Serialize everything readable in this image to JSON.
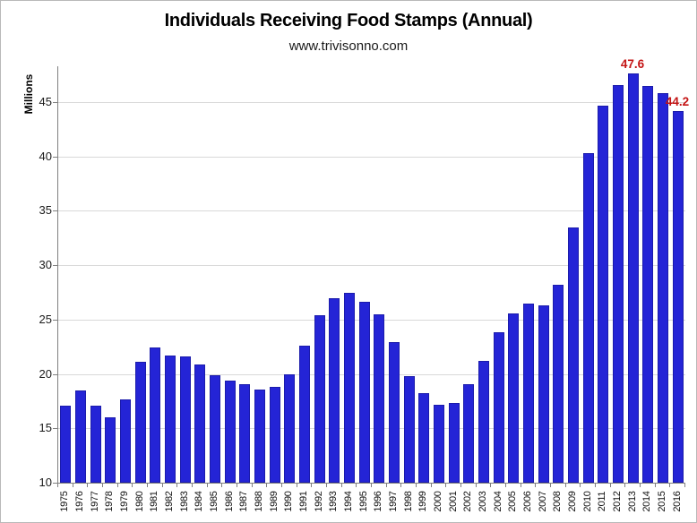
{
  "page": {
    "background": "#FFFFFF",
    "frame_border_color": "#B9B9B9"
  },
  "chart_data": {
    "type": "bar",
    "title": "Individuals Receiving Food Stamps (Annual)",
    "subtitle": "www.trivisonno.com",
    "xlabel": "",
    "ylabel": "Millions",
    "categories": [
      "1975",
      "1976",
      "1977",
      "1978",
      "1979",
      "1980",
      "1981",
      "1982",
      "1983",
      "1984",
      "1985",
      "1986",
      "1987",
      "1988",
      "1989",
      "1990",
      "1991",
      "1992",
      "1993",
      "1994",
      "1995",
      "1996",
      "1997",
      "1998",
      "1999",
      "2000",
      "2001",
      "2002",
      "2003",
      "2004",
      "2005",
      "2006",
      "2007",
      "2008",
      "2009",
      "2010",
      "2011",
      "2012",
      "2013",
      "2014",
      "2015",
      "2016"
    ],
    "values": [
      17.1,
      18.5,
      17.1,
      16.0,
      17.7,
      21.1,
      22.4,
      21.7,
      21.6,
      20.9,
      19.9,
      19.4,
      19.1,
      18.6,
      18.8,
      20.0,
      22.6,
      25.4,
      27.0,
      27.5,
      26.6,
      25.5,
      22.9,
      19.8,
      18.2,
      17.2,
      17.3,
      19.1,
      21.2,
      23.8,
      25.6,
      26.5,
      26.3,
      28.2,
      33.5,
      40.3,
      44.7,
      46.6,
      47.6,
      46.5,
      45.8,
      44.2
    ],
    "ylim": [
      10,
      48.3
    ],
    "yticks": [
      10,
      15,
      20,
      25,
      30,
      35,
      40,
      45
    ],
    "grid": true,
    "legend_position": "none",
    "bar_color": "#2424D6",
    "bar_border_color": "#1B1BAB",
    "gridline_color": "#D9D9D9",
    "axis_color": "#808080",
    "annotation_color": "#C41414",
    "annotations": [
      {
        "category": "2013",
        "label": "47.6"
      },
      {
        "category": "2016",
        "label": "44.2"
      }
    ]
  }
}
